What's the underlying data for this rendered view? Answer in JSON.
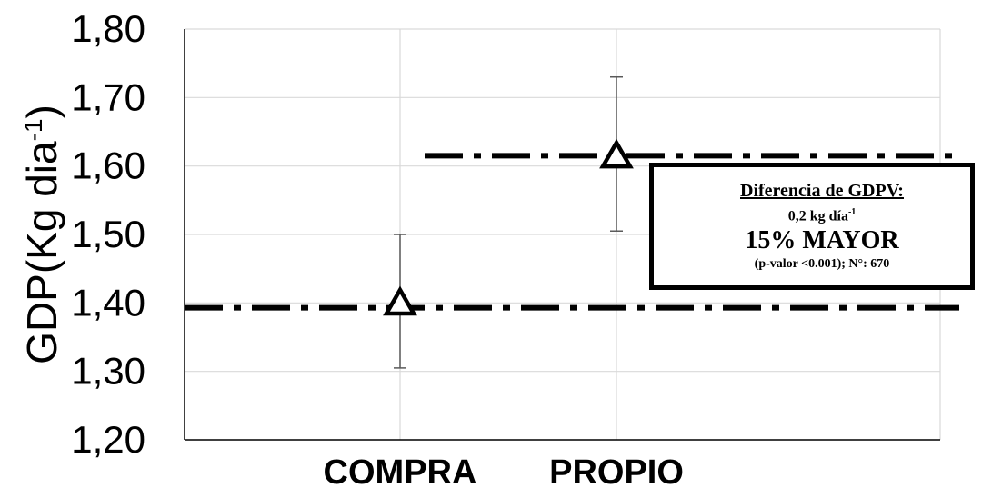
{
  "chart_data": {
    "type": "scatter",
    "categories": [
      "COMPRA",
      "PROPIO"
    ],
    "series": [
      {
        "values": [
          1.4,
          1.615
        ],
        "error_low": [
          1.305,
          1.505
        ],
        "error_high": [
          1.5,
          1.73
        ],
        "marker": "triangle-open"
      }
    ],
    "reference_lines": [
      1.393,
      1.615
    ],
    "ylabel": "GDP(Kg dia",
    "ylabel_sup": "-1",
    "ylabel_close": ")",
    "ylim": [
      1.2,
      1.8
    ],
    "yticks": [
      "1,20",
      "1,30",
      "1,40",
      "1,50",
      "1,60",
      "1,70",
      "1,80"
    ],
    "grid": true,
    "annotation": {
      "line1": "Diferencia de GDPV:",
      "line2_main": "0,2 kg día",
      "line2_sup": "-1",
      "line3": "15% MAYOR",
      "line4": "(p-valor <0.001); N°: 670"
    },
    "colors": {
      "marker": "#000000",
      "grid": "#d9d9d9",
      "error": "#595959",
      "ref_line": "#000000"
    }
  }
}
